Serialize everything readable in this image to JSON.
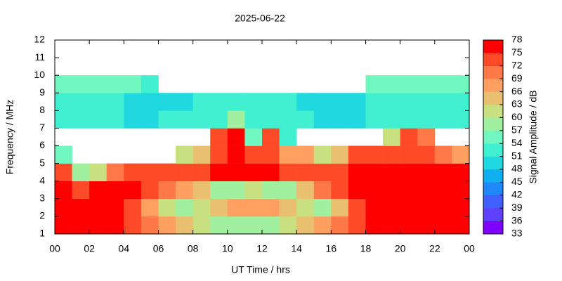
{
  "chart_data": {
    "type": "heatmap",
    "title": "2025-06-22",
    "xlabel": "UT Time / hrs",
    "ylabel": "Frequency / MHz",
    "zlabel": "Signal Amplitude / dB",
    "x": [
      0.5,
      1.5,
      2.5,
      3.5,
      4.5,
      5.5,
      6.5,
      7.5,
      8.5,
      9.5,
      10.5,
      11.5,
      12.5,
      13.5,
      14.5,
      15.5,
      16.5,
      17.5,
      18.5,
      19.5,
      20.5,
      21.5,
      22.5,
      23.5
    ],
    "y": [
      1.5,
      2.5,
      3.5,
      4.5,
      5.5,
      6.5,
      7.5,
      8.5,
      9.5
    ],
    "z": [
      [
        75,
        75,
        75,
        75,
        72,
        69,
        66,
        63,
        60,
        57,
        57,
        57,
        57,
        60,
        63,
        66,
        69,
        72,
        75,
        75,
        75,
        75,
        75,
        75
      ],
      [
        75,
        75,
        75,
        75,
        72,
        66,
        60,
        57,
        60,
        63,
        66,
        66,
        66,
        63,
        60,
        57,
        63,
        72,
        75,
        75,
        75,
        75,
        75,
        75
      ],
      [
        75,
        72,
        75,
        75,
        75,
        72,
        69,
        66,
        63,
        57,
        57,
        60,
        57,
        57,
        63,
        69,
        72,
        75,
        75,
        75,
        75,
        75,
        75,
        75
      ],
      [
        72,
        57,
        60,
        69,
        72,
        72,
        72,
        72,
        72,
        75,
        75,
        75,
        75,
        72,
        72,
        72,
        72,
        75,
        75,
        75,
        75,
        75,
        75,
        75
      ],
      [
        54,
        null,
        null,
        null,
        null,
        null,
        null,
        60,
        63,
        72,
        75,
        72,
        72,
        66,
        66,
        60,
        63,
        72,
        72,
        72,
        72,
        72,
        69,
        66
      ],
      [
        null,
        null,
        null,
        null,
        null,
        null,
        null,
        null,
        null,
        72,
        75,
        54,
        72,
        51,
        null,
        null,
        null,
        null,
        null,
        60,
        72,
        69,
        null,
        null
      ],
      [
        51,
        51,
        51,
        51,
        48,
        48,
        51,
        51,
        51,
        51,
        57,
        51,
        51,
        51,
        51,
        48,
        48,
        48,
        51,
        51,
        51,
        51,
        51,
        51
      ],
      [
        51,
        51,
        51,
        51,
        48,
        48,
        48,
        48,
        51,
        51,
        51,
        51,
        51,
        51,
        48,
        48,
        48,
        48,
        51,
        51,
        51,
        51,
        51,
        51
      ],
      [
        54,
        54,
        54,
        54,
        54,
        51,
        null,
        null,
        null,
        null,
        null,
        null,
        null,
        null,
        null,
        null,
        null,
        null,
        54,
        54,
        54,
        54,
        54,
        54
      ]
    ],
    "xlim": [
      0,
      24
    ],
    "xticks": [
      {
        "value": 0,
        "label": "00"
      },
      {
        "value": 2,
        "label": "02"
      },
      {
        "value": 4,
        "label": "04"
      },
      {
        "value": 6,
        "label": "06"
      },
      {
        "value": 8,
        "label": "08"
      },
      10,
      12,
      14,
      16,
      18,
      20,
      22,
      {
        "value": 24,
        "label": "00"
      }
    ],
    "ylim": [
      1,
      12
    ],
    "yticks": [
      1,
      2,
      3,
      4,
      5,
      6,
      7,
      8,
      9,
      10,
      11,
      12
    ],
    "zlim": [
      33,
      78
    ],
    "zticks": [
      33,
      36,
      39,
      42,
      45,
      48,
      51,
      54,
      57,
      60,
      63,
      66,
      69,
      72,
      75,
      78
    ],
    "colorscale": [
      "#8000ff",
      "#6040ff",
      "#4060ff",
      "#2088f8",
      "#10b0f0",
      "#20d8e0",
      "#40f0d0",
      "#70f8c0",
      "#a0f0a0",
      "#c8e080",
      "#e8c070",
      "#ffa060",
      "#ff7848",
      "#ff4a28",
      "#ff0000"
    ]
  }
}
